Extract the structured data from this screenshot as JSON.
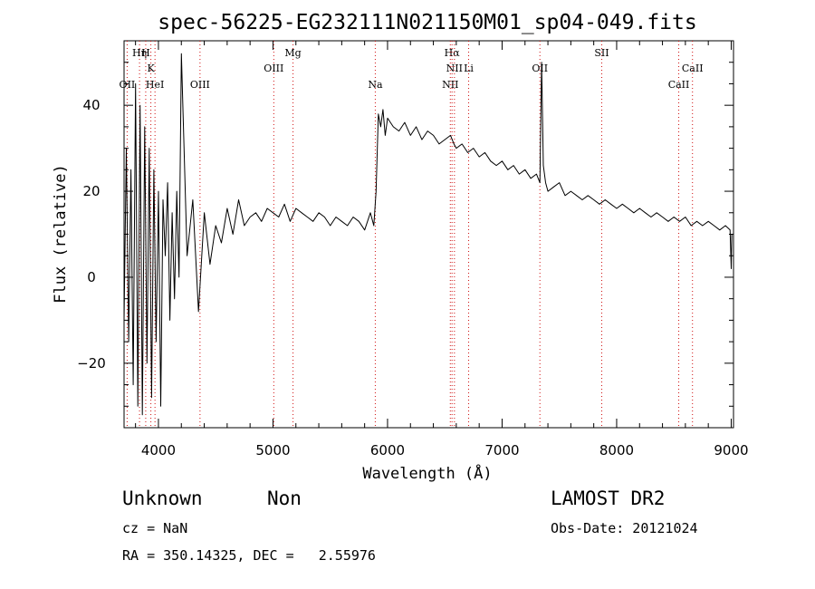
{
  "chart_data": {
    "type": "line",
    "title": "spec-56225-EG232111N021150M01_sp04-049.fits",
    "xlabel": "Wavelength (Å)",
    "ylabel": "Flux (relative)",
    "xlim": [
      3700,
      9020
    ],
    "ylim": [
      -35,
      55
    ],
    "x_ticks": [
      4000,
      5000,
      6000,
      7000,
      8000,
      9000
    ],
    "x_tick_labels": [
      "4000",
      "5000",
      "6000",
      "7000",
      "8000",
      "9000"
    ],
    "y_ticks": [
      -20,
      0,
      20,
      40
    ],
    "y_tick_labels": [
      "−20",
      "0",
      "20",
      "40"
    ],
    "grid": false,
    "series": [
      {
        "x": [
          3700,
          3720,
          3740,
          3760,
          3780,
          3800,
          3820,
          3840,
          3860,
          3880,
          3900,
          3920,
          3940,
          3960,
          3980,
          4000,
          4020,
          4040,
          4060,
          4080,
          4100,
          4120,
          4140,
          4160,
          4180,
          4200,
          4250,
          4300,
          4350,
          4400,
          4450,
          4500,
          4550,
          4600,
          4650,
          4700,
          4750,
          4800,
          4850,
          4900,
          4950,
          5000,
          5050,
          5100,
          5150,
          5200,
          5250,
          5300,
          5350,
          5400,
          5450,
          5500,
          5550,
          5600,
          5650,
          5700,
          5750,
          5800,
          5850,
          5880,
          5900,
          5920,
          5940,
          5960,
          5980,
          6000,
          6050,
          6100,
          6150,
          6200,
          6250,
          6300,
          6350,
          6400,
          6450,
          6500,
          6550,
          6580,
          6600,
          6650,
          6700,
          6750,
          6800,
          6850,
          6900,
          6950,
          7000,
          7050,
          7100,
          7150,
          7200,
          7250,
          7300,
          7330,
          7345,
          7360,
          7380,
          7400,
          7450,
          7500,
          7550,
          7600,
          7650,
          7700,
          7750,
          7800,
          7850,
          7900,
          7950,
          8000,
          8050,
          8100,
          8150,
          8200,
          8250,
          8300,
          8350,
          8400,
          8450,
          8500,
          8550,
          8600,
          8650,
          8700,
          8750,
          8800,
          8850,
          8900,
          8950,
          8990,
          9000,
          9005
        ],
        "y": [
          -10,
          30,
          -15,
          25,
          -25,
          45,
          -30,
          40,
          -32,
          35,
          -20,
          30,
          -28,
          25,
          -15,
          20,
          -30,
          18,
          5,
          22,
          -10,
          15,
          -5,
          20,
          0,
          52,
          5,
          18,
          -8,
          15,
          3,
          12,
          8,
          16,
          10,
          18,
          12,
          14,
          15,
          13,
          16,
          15,
          14,
          17,
          13,
          16,
          15,
          14,
          13,
          15,
          14,
          12,
          14,
          13,
          12,
          14,
          13,
          11,
          15,
          12,
          20,
          38,
          35,
          39,
          33,
          37,
          35,
          34,
          36,
          33,
          35,
          32,
          34,
          33,
          31,
          32,
          33,
          31,
          30,
          31,
          29,
          30,
          28,
          29,
          27,
          26,
          27,
          25,
          26,
          24,
          25,
          23,
          24,
          22,
          50,
          26,
          22,
          20,
          21,
          22,
          19,
          20,
          19,
          18,
          19,
          18,
          17,
          18,
          17,
          16,
          17,
          16,
          15,
          16,
          15,
          14,
          15,
          14,
          13,
          14,
          13,
          14,
          12,
          13,
          12,
          13,
          12,
          11,
          12,
          11,
          2,
          10
        ]
      }
    ],
    "line_labels": [
      {
        "label": "OII",
        "x": 3727,
        "row": 3
      },
      {
        "label": "Hη",
        "x": 3835,
        "row": 1
      },
      {
        "label": "H",
        "x": 3889,
        "row": 1
      },
      {
        "label": "K",
        "x": 3934,
        "row": 2
      },
      {
        "label": "HeI",
        "x": 3970,
        "row": 3
      },
      {
        "label": "OIII",
        "x": 4363,
        "row": 3
      },
      {
        "label": "OIII",
        "x": 5007,
        "row": 2
      },
      {
        "label": "Mg",
        "x": 5175,
        "row": 1
      },
      {
        "label": "Na",
        "x": 5893,
        "row": 3
      },
      {
        "label": "Hα",
        "x": 6563,
        "row": 1
      },
      {
        "label": "NII",
        "x": 6584,
        "row": 2
      },
      {
        "label": "NII",
        "x": 6548,
        "row": 3
      },
      {
        "label": "Li",
        "x": 6708,
        "row": 2
      },
      {
        "label": "OII",
        "x": 7330,
        "row": 2
      },
      {
        "label": "SII",
        "x": 7870,
        "row": 1
      },
      {
        "label": "CaII",
        "x": 8662,
        "row": 2
      },
      {
        "label": "CaII",
        "x": 8542,
        "row": 3
      }
    ]
  },
  "info": {
    "class": "Unknown",
    "subclass": "Non",
    "survey": "LAMOST DR2",
    "cz": "cz = NaN",
    "obs_date": "Obs-Date: 20121024",
    "coords": "RA = 350.14325, DEC =   2.55976"
  }
}
